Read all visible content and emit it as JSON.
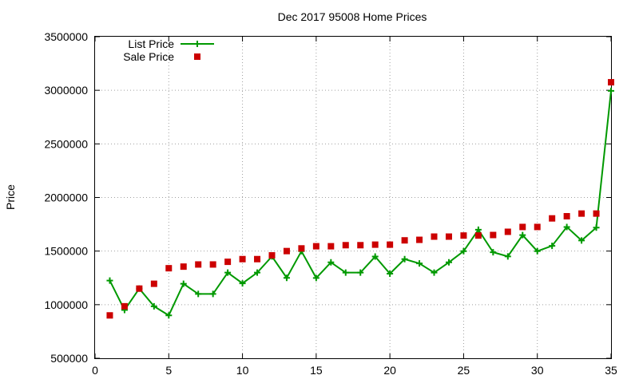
{
  "chart_data": {
    "type": "line",
    "title": "Dec 2017 95008 Home Prices",
    "xlabel": "",
    "ylabel": "Price",
    "xlim": [
      0,
      35
    ],
    "ylim": [
      500000,
      3500000
    ],
    "x_ticks": [
      "0",
      "5",
      "10",
      "15",
      "20",
      "25",
      "30",
      "35"
    ],
    "y_ticks": [
      "500000",
      "1000000",
      "1500000",
      "2000000",
      "2500000",
      "3000000",
      "3500000"
    ],
    "grid": true,
    "legend_position": "top-left",
    "series": [
      {
        "name": "List Price",
        "style": "line-with-plus-markers",
        "color": "#009900",
        "x": [
          1,
          2,
          3,
          4,
          5,
          6,
          7,
          8,
          9,
          10,
          11,
          12,
          13,
          14,
          15,
          16,
          17,
          18,
          19,
          20,
          21,
          22,
          23,
          24,
          25,
          26,
          27,
          28,
          29,
          30,
          31,
          32,
          33,
          34,
          35
        ],
        "values": [
          1225000,
          950000,
          1150000,
          985000,
          900000,
          1195000,
          1100000,
          1100000,
          1299000,
          1199000,
          1299000,
          1450000,
          1250000,
          1499000,
          1249000,
          1395000,
          1299000,
          1299000,
          1449000,
          1289000,
          1425000,
          1385000,
          1299000,
          1395000,
          1499000,
          1699000,
          1489000,
          1450000,
          1649000,
          1499000,
          1549000,
          1725000,
          1599000,
          1719000,
          2995000
        ]
      },
      {
        "name": "Sale Price",
        "style": "square-markers",
        "color": "#cc0000",
        "x": [
          1,
          2,
          3,
          4,
          5,
          6,
          7,
          8,
          9,
          10,
          11,
          12,
          13,
          14,
          15,
          16,
          17,
          18,
          19,
          20,
          21,
          22,
          23,
          24,
          25,
          26,
          27,
          28,
          29,
          30,
          31,
          32,
          33,
          34,
          35
        ],
        "values": [
          900000,
          985000,
          1150000,
          1195000,
          1340000,
          1355000,
          1375000,
          1375000,
          1400000,
          1425000,
          1425000,
          1460000,
          1500000,
          1525000,
          1545000,
          1545000,
          1555000,
          1555000,
          1560000,
          1560000,
          1600000,
          1605000,
          1635000,
          1635000,
          1645000,
          1645000,
          1650000,
          1680000,
          1725000,
          1725000,
          1805000,
          1825000,
          1850000,
          1850000,
          3075000
        ]
      }
    ]
  }
}
